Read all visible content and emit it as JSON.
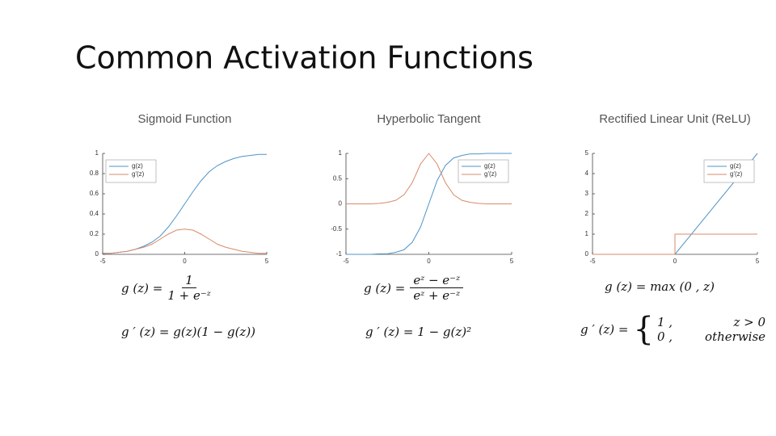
{
  "title": "Common Activation Functions",
  "chart_data": [
    {
      "type": "line",
      "title": "Sigmoid Function",
      "x": [
        -5,
        -4.5,
        -4,
        -3.5,
        -3,
        -2.5,
        -2,
        -1.5,
        -1,
        -0.5,
        0,
        0.5,
        1,
        1.5,
        2,
        2.5,
        3,
        3.5,
        4,
        4.5,
        5
      ],
      "series": [
        {
          "name": "g(z)",
          "color": "#4f94c8",
          "values": [
            0.01,
            0.01,
            0.02,
            0.03,
            0.05,
            0.08,
            0.12,
            0.18,
            0.27,
            0.38,
            0.5,
            0.62,
            0.73,
            0.82,
            0.88,
            0.92,
            0.95,
            0.97,
            0.98,
            0.99,
            0.99
          ]
        },
        {
          "name": "g'(z)",
          "color": "#d98a6a",
          "values": [
            0.01,
            0.01,
            0.02,
            0.03,
            0.05,
            0.07,
            0.1,
            0.15,
            0.2,
            0.24,
            0.25,
            0.24,
            0.2,
            0.15,
            0.1,
            0.07,
            0.05,
            0.03,
            0.02,
            0.01,
            0.01
          ]
        }
      ],
      "xlim": [
        -5,
        5
      ],
      "xticks": [
        -5,
        0,
        5
      ],
      "ylim": [
        0,
        1
      ],
      "yticks": [
        0,
        0.2,
        0.4,
        0.6,
        0.8,
        1
      ],
      "legend": "upper-left"
    },
    {
      "type": "line",
      "title": "Hyperbolic Tangent",
      "x": [
        -5,
        -4.5,
        -4,
        -3.5,
        -3,
        -2.5,
        -2,
        -1.5,
        -1,
        -0.5,
        0,
        0.5,
        1,
        1.5,
        2,
        2.5,
        3,
        3.5,
        4,
        4.5,
        5
      ],
      "series": [
        {
          "name": "g(z)",
          "color": "#4f94c8",
          "values": [
            -1,
            -1,
            -1,
            -1,
            -0.99,
            -0.99,
            -0.96,
            -0.91,
            -0.76,
            -0.46,
            0,
            0.46,
            0.76,
            0.91,
            0.96,
            0.99,
            0.99,
            1,
            1,
            1,
            1
          ]
        },
        {
          "name": "g'(z)",
          "color": "#d98a6a",
          "values": [
            0,
            0,
            0,
            0,
            0.01,
            0.03,
            0.07,
            0.18,
            0.42,
            0.79,
            1,
            0.79,
            0.42,
            0.18,
            0.07,
            0.03,
            0.01,
            0,
            0,
            0,
            0
          ]
        }
      ],
      "xlim": [
        -5,
        5
      ],
      "xticks": [
        -5,
        0,
        5
      ],
      "ylim": [
        -1,
        1
      ],
      "yticks": [
        -1,
        -0.5,
        0,
        0.5,
        1
      ],
      "legend": "upper-right"
    },
    {
      "type": "line",
      "title": "Rectified Linear Unit (ReLU)",
      "x": [
        -5,
        0,
        0,
        5
      ],
      "series": [
        {
          "name": "g(z)",
          "color": "#4f94c8",
          "values": [
            0,
            0,
            0,
            5
          ]
        },
        {
          "name": "g'(z)",
          "color": "#d98a6a",
          "values": [
            0,
            0,
            1,
            1
          ]
        }
      ],
      "xlim": [
        -5,
        5
      ],
      "xticks": [
        -5,
        0,
        5
      ],
      "ylim": [
        0,
        5
      ],
      "yticks": [
        0,
        1,
        2,
        3,
        4,
        5
      ],
      "legend": "upper-right"
    }
  ],
  "formulas": [
    {
      "f1": {
        "lhs": "g (z) =",
        "num": "1",
        "den": "1 + e⁻ᶻ"
      },
      "f2": "g ′ (z) = g(z)(1 − g(z))"
    },
    {
      "f1": {
        "lhs": "g (z) =",
        "num": "eᶻ − e⁻ᶻ",
        "den": "eᶻ + e⁻ᶻ"
      },
      "f2": "g ′ (z) = 1 − g(z)²"
    },
    {
      "f1": {
        "lhs": "g (z) = max (0 , z)"
      },
      "f2": {
        "lhs": "g ′ (z) =",
        "cases": [
          [
            "1 ,",
            "z > 0"
          ],
          [
            "0 ,",
            "otherwise"
          ]
        ]
      }
    }
  ]
}
